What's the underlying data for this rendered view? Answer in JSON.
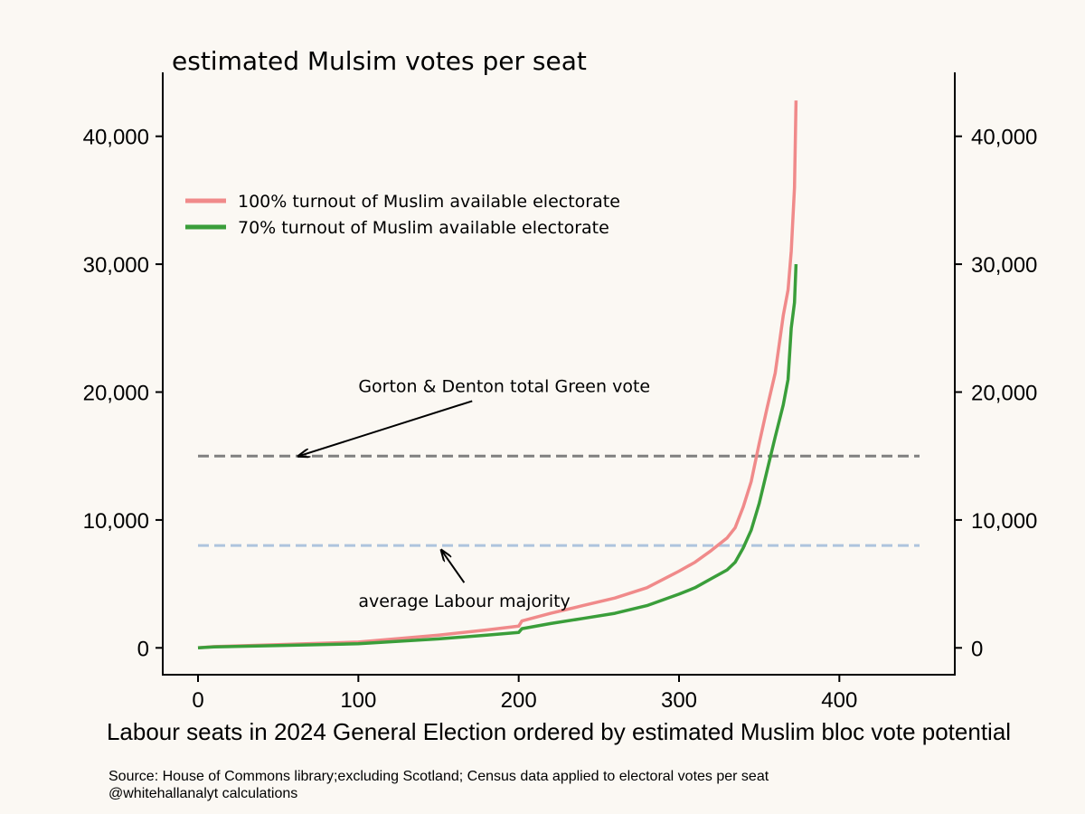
{
  "chart_data": {
    "type": "line",
    "title": "estimated Mulsim votes per seat",
    "xlabel": "Labour seats in 2024 General Election ordered by estimated Muslim bloc vote potential",
    "ylabel": "",
    "xlim": [
      -22,
      472
    ],
    "ylim": [
      -2100,
      45000
    ],
    "x_ticks": [
      0,
      100,
      200,
      300,
      400
    ],
    "x_tick_labels": [
      "0",
      "100",
      "200",
      "300",
      "400"
    ],
    "y_ticks": [
      0,
      10000,
      20000,
      30000,
      40000
    ],
    "y_tick_labels": [
      "0",
      "10,000",
      "20,000",
      "30,000",
      "40,000"
    ],
    "grid": false,
    "legend_position": "upper-left",
    "series": [
      {
        "name": "100% turnout of Muslim available electorate",
        "color": "#f08a8a",
        "x": [
          0,
          10,
          50,
          100,
          150,
          180,
          200,
          202,
          220,
          240,
          260,
          280,
          300,
          310,
          320,
          330,
          335,
          340,
          345,
          350,
          355,
          360,
          365,
          368,
          370,
          372,
          373
        ],
        "y": [
          0,
          100,
          250,
          450,
          1000,
          1400,
          1700,
          2100,
          2700,
          3300,
          3900,
          4700,
          6000,
          6700,
          7600,
          8600,
          9400,
          11000,
          13000,
          16000,
          18800,
          21500,
          26000,
          28000,
          31000,
          36000,
          42800
        ]
      },
      {
        "name": "70% turnout of Muslim available electorate",
        "color": "#3a9e3a",
        "x": [
          0,
          10,
          50,
          100,
          150,
          180,
          200,
          202,
          220,
          240,
          260,
          280,
          300,
          310,
          320,
          330,
          335,
          340,
          345,
          350,
          355,
          360,
          365,
          368,
          370,
          372,
          373
        ],
        "y": [
          0,
          80,
          180,
          320,
          700,
          1000,
          1200,
          1500,
          1900,
          2300,
          2700,
          3300,
          4200,
          4700,
          5400,
          6100,
          6700,
          7800,
          9200,
          11300,
          13900,
          16500,
          19000,
          21000,
          25000,
          27000,
          30000
        ]
      }
    ],
    "reference_lines": [
      {
        "y": 15000,
        "color": "#808080",
        "style": "dashed"
      },
      {
        "y": 8000,
        "color": "#aec4dd",
        "style": "dashed"
      }
    ],
    "annotations": [
      {
        "text": "Gorton & Denton total Green vote",
        "text_x": 100,
        "text_y": 20000,
        "arrow_from": [
          171,
          19300
        ],
        "arrow_to": [
          63,
          15000
        ]
      },
      {
        "text": "average Labour majority",
        "text_x": 100,
        "text_y": 3200,
        "arrow_from": [
          166,
          5100
        ],
        "arrow_to": [
          152,
          7600
        ]
      }
    ],
    "source": "Source: House of Commons library;excluding Scotland; Census data applied to electoral votes per seat",
    "credit": "@whitehallanalyt calculations"
  }
}
